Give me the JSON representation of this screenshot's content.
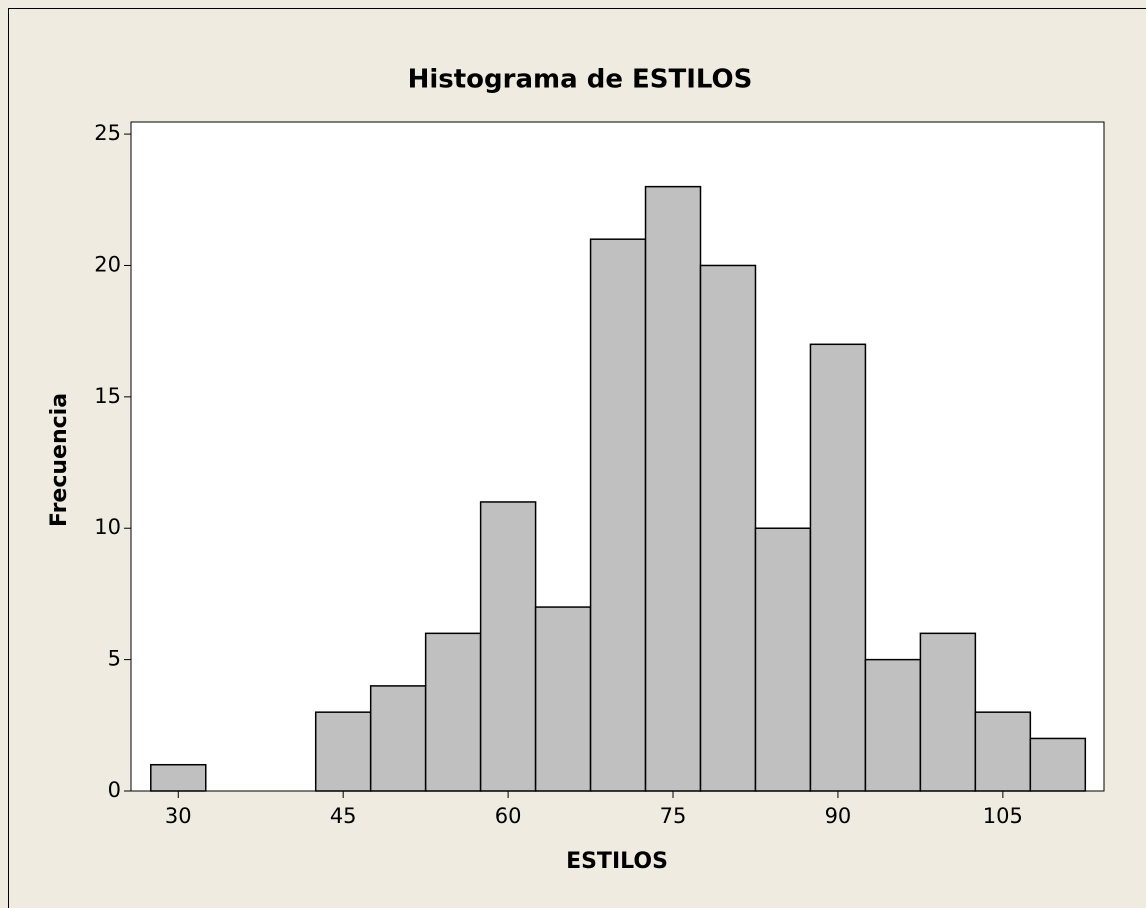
{
  "chart_data": {
    "type": "histogram",
    "title": "Histograma de ESTILOS",
    "x_label": "ESTILOS",
    "y_label": "Frecuencia",
    "bins": [
      27.5,
      32.5,
      37.5,
      42.5,
      47.5,
      52.5,
      57.5,
      62.5,
      67.5,
      72.5,
      77.5,
      82.5,
      87.5,
      92.5,
      97.5,
      102.5,
      107.5,
      112.5
    ],
    "counts": [
      1,
      0,
      0,
      3,
      4,
      6,
      11,
      7,
      21,
      23,
      20,
      10,
      17,
      5,
      6,
      3,
      2
    ],
    "color": "#c0c0c0",
    "xlim": [
      25.7,
      114.2
    ],
    "xticks": [
      30,
      45,
      60,
      75,
      90,
      105
    ],
    "ylim": [
      0,
      25.46
    ],
    "yticks": [
      0,
      5,
      10,
      15,
      20,
      25
    ]
  }
}
